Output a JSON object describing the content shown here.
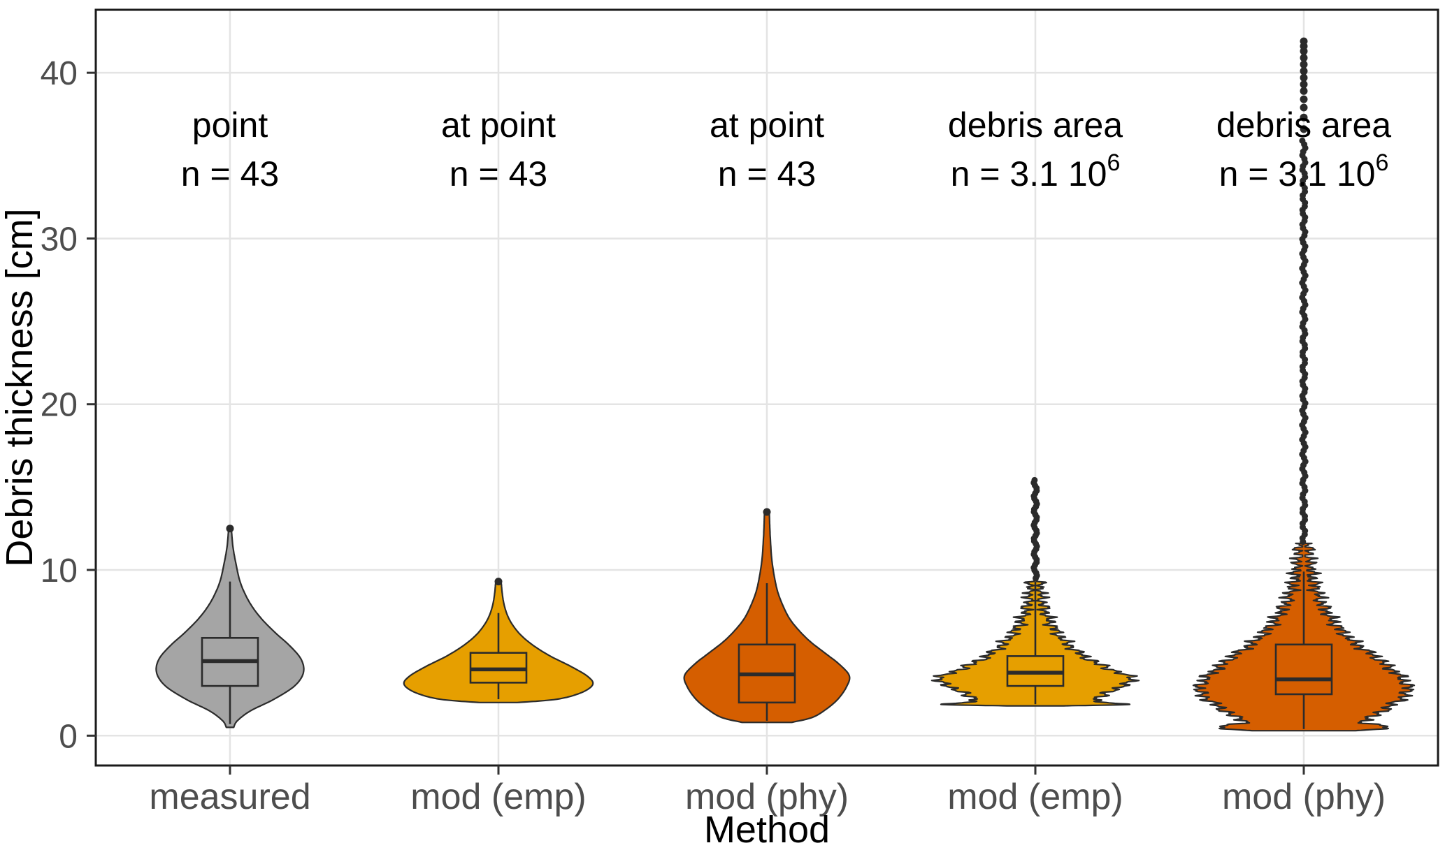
{
  "figure": {
    "background": "#ffffff",
    "panel_border": "#1a1a1a",
    "grid_color": "#e4e4e4",
    "tick_color": "#333333",
    "tick_label_color": "#4d4d4d",
    "axis_title_color": "#000000",
    "annotation_color": "#000000",
    "outline_color": "#2b2b2b",
    "dot_color": "#2b2b2b"
  },
  "chart_data": {
    "type": "violin",
    "title": "",
    "xlabel": "Method",
    "ylabel": "Debris thickness [cm]",
    "ylim": [
      -1.8,
      43.8
    ],
    "yticks": [
      0,
      10,
      20,
      30,
      40
    ],
    "grid": true,
    "legend": "none",
    "categories": [
      "measured",
      "mod (emp)",
      "mod (phy)",
      "mod (emp)",
      "mod (phy)"
    ],
    "annotations": [
      {
        "line1": "point",
        "line2": "n = 43",
        "sup": ""
      },
      {
        "line1": "at point",
        "line2": "n = 43",
        "sup": ""
      },
      {
        "line1": "at point",
        "line2": "n = 43",
        "sup": ""
      },
      {
        "line1": "debris area",
        "line2": "n = 3.1 10",
        "sup": "6"
      },
      {
        "line1": "debris area",
        "line2": "n = 3.1 10",
        "sup": "6"
      }
    ],
    "series": [
      {
        "name": "measured",
        "color": "#a5a5a5",
        "jagged": false,
        "max_halfwidth": 105,
        "profile": [
          [
            0.5,
            0.05
          ],
          [
            0.9,
            0.1
          ],
          [
            1.5,
            0.28
          ],
          [
            2.2,
            0.6
          ],
          [
            3.0,
            0.88
          ],
          [
            3.8,
            1.0
          ],
          [
            4.6,
            0.97
          ],
          [
            5.4,
            0.82
          ],
          [
            6.2,
            0.62
          ],
          [
            7.0,
            0.44
          ],
          [
            7.8,
            0.3
          ],
          [
            8.6,
            0.2
          ],
          [
            9.4,
            0.13
          ],
          [
            10.4,
            0.08
          ],
          [
            11.4,
            0.04
          ],
          [
            12.4,
            0.02
          ]
        ],
        "box": {
          "whisker_low": 0.7,
          "q1": 3.0,
          "median": 4.5,
          "q3": 5.9,
          "whisker_high": 9.3
        },
        "outliers": [
          12.5
        ]
      },
      {
        "name": "mod (emp) at point",
        "color": "#E69F00",
        "jagged": false,
        "max_halfwidth": 135,
        "profile": [
          [
            2.0,
            0.2
          ],
          [
            2.2,
            0.62
          ],
          [
            2.6,
            0.88
          ],
          [
            3.1,
            1.0
          ],
          [
            3.6,
            0.94
          ],
          [
            4.2,
            0.76
          ],
          [
            4.8,
            0.55
          ],
          [
            5.4,
            0.38
          ],
          [
            6.0,
            0.25
          ],
          [
            6.6,
            0.16
          ],
          [
            7.2,
            0.1
          ],
          [
            7.9,
            0.06
          ],
          [
            8.6,
            0.04
          ],
          [
            9.2,
            0.03
          ]
        ],
        "box": {
          "whisker_low": 2.2,
          "q1": 3.2,
          "median": 4.0,
          "q3": 5.0,
          "whisker_high": 7.4
        },
        "outliers": [
          9.3
        ]
      },
      {
        "name": "mod (phy) at point",
        "color": "#D55E00",
        "jagged": false,
        "max_halfwidth": 118,
        "profile": [
          [
            0.8,
            0.3
          ],
          [
            1.1,
            0.55
          ],
          [
            1.6,
            0.72
          ],
          [
            2.2,
            0.86
          ],
          [
            2.9,
            0.96
          ],
          [
            3.6,
            1.0
          ],
          [
            4.3,
            0.88
          ],
          [
            5.0,
            0.7
          ],
          [
            5.7,
            0.52
          ],
          [
            6.4,
            0.38
          ],
          [
            7.1,
            0.27
          ],
          [
            7.9,
            0.19
          ],
          [
            8.7,
            0.13
          ],
          [
            9.6,
            0.09
          ],
          [
            10.6,
            0.06
          ],
          [
            11.6,
            0.045
          ],
          [
            12.6,
            0.035
          ],
          [
            13.4,
            0.03
          ]
        ],
        "box": {
          "whisker_low": 0.9,
          "q1": 2.0,
          "median": 3.7,
          "q3": 5.5,
          "whisker_high": 9.2
        },
        "outliers": [
          13.5
        ]
      },
      {
        "name": "mod (emp) debris area",
        "color": "#E69F00",
        "jagged": true,
        "max_halfwidth": 140,
        "profile": [
          [
            1.8,
            0.3
          ],
          [
            1.9,
            0.95
          ],
          [
            2.1,
            0.6
          ],
          [
            2.5,
            0.72
          ],
          [
            3.0,
            0.88
          ],
          [
            3.4,
            1.0
          ],
          [
            3.9,
            0.82
          ],
          [
            4.4,
            0.62
          ],
          [
            4.9,
            0.47
          ],
          [
            5.4,
            0.36
          ],
          [
            5.9,
            0.27
          ],
          [
            6.4,
            0.2
          ],
          [
            6.9,
            0.15
          ],
          [
            7.4,
            0.11
          ],
          [
            7.9,
            0.08
          ],
          [
            8.5,
            0.06
          ],
          [
            9.1,
            0.04
          ],
          [
            9.4,
            0.03
          ]
        ],
        "box": {
          "whisker_low": 1.9,
          "q1": 3.0,
          "median": 3.8,
          "q3": 4.8,
          "whisker_high": 9.3
        },
        "outlier_run": {
          "from": 9.5,
          "to": 15.5,
          "step": 0.16
        },
        "outliers": []
      },
      {
        "name": "mod (phy) debris area",
        "color": "#D55E00",
        "jagged": true,
        "max_halfwidth": 150,
        "profile": [
          [
            0.3,
            0.45
          ],
          [
            0.5,
            0.85
          ],
          [
            0.8,
            0.55
          ],
          [
            1.2,
            0.68
          ],
          [
            1.7,
            0.8
          ],
          [
            2.2,
            0.92
          ],
          [
            2.7,
            1.0
          ],
          [
            3.2,
            0.97
          ],
          [
            3.7,
            0.9
          ],
          [
            4.2,
            0.8
          ],
          [
            4.7,
            0.7
          ],
          [
            5.2,
            0.58
          ],
          [
            5.7,
            0.47
          ],
          [
            6.2,
            0.38
          ],
          [
            6.7,
            0.31
          ],
          [
            7.2,
            0.25
          ],
          [
            7.7,
            0.2
          ],
          [
            8.2,
            0.16
          ],
          [
            8.7,
            0.13
          ],
          [
            9.2,
            0.1
          ],
          [
            9.8,
            0.08
          ],
          [
            10.4,
            0.06
          ],
          [
            11.0,
            0.05
          ],
          [
            11.6,
            0.04
          ]
        ],
        "box": {
          "whisker_low": 0.4,
          "q1": 2.5,
          "median": 3.4,
          "q3": 5.5,
          "whisker_high": 9.9
        },
        "outlier_run": {
          "from": 11.7,
          "to": 36.0,
          "step": 0.22
        },
        "outliers": [
          36.6,
          37.3,
          37.9,
          38.4,
          38.9,
          39.3,
          39.7,
          40.1,
          40.5,
          40.9,
          41.3,
          41.6,
          41.9
        ]
      }
    ]
  }
}
